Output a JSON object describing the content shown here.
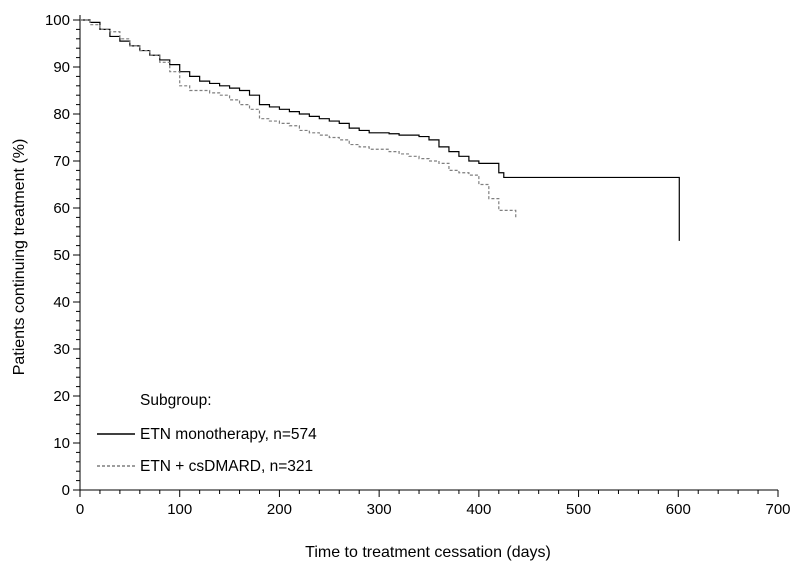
{
  "chart_data": {
    "type": "line",
    "title": "",
    "xlabel": "Time to treatment cessation (days)",
    "ylabel": "Patients continuing treatment (%)",
    "xlim": [
      0,
      700
    ],
    "ylim": [
      0,
      100
    ],
    "x_ticks": [
      0,
      100,
      200,
      300,
      400,
      500,
      600,
      700
    ],
    "y_ticks": [
      0,
      10,
      20,
      30,
      40,
      50,
      60,
      70,
      80,
      90,
      100
    ],
    "grid": false,
    "legend_title": "Subgroup:",
    "legend_position": "bottom-left",
    "series": [
      {
        "name": "ETN monotherapy, n=574",
        "style": "solid",
        "color": "#000000",
        "x": [
          0,
          10,
          20,
          30,
          40,
          50,
          60,
          70,
          80,
          90,
          100,
          110,
          120,
          130,
          140,
          150,
          160,
          170,
          180,
          190,
          200,
          210,
          220,
          230,
          240,
          250,
          260,
          270,
          280,
          290,
          300,
          310,
          320,
          330,
          340,
          350,
          360,
          370,
          380,
          390,
          400,
          410,
          420,
          425,
          430,
          600,
          601
        ],
        "y": [
          100,
          99.5,
          98,
          96.5,
          95.5,
          94.5,
          93.5,
          92.5,
          91.5,
          90.5,
          89,
          88,
          87,
          86.5,
          86,
          85.5,
          85,
          84,
          82,
          81.5,
          81,
          80.5,
          80,
          79.5,
          79,
          78.5,
          78,
          77,
          76.5,
          76,
          76,
          75.8,
          75.5,
          75.5,
          75.2,
          74.5,
          73,
          72,
          71,
          70,
          69.5,
          69.5,
          67.5,
          66.5,
          66.5,
          66.5,
          53
        ]
      },
      {
        "name": "ETN + csDMARD, n=321",
        "style": "dashed",
        "color": "#7f7f7f",
        "x": [
          0,
          10,
          20,
          30,
          40,
          50,
          60,
          70,
          80,
          90,
          100,
          110,
          120,
          130,
          140,
          150,
          160,
          170,
          180,
          190,
          200,
          210,
          220,
          230,
          240,
          250,
          260,
          270,
          280,
          290,
          300,
          310,
          320,
          330,
          340,
          350,
          360,
          370,
          380,
          390,
          400,
          410,
          420,
          430,
          437
        ],
        "y": [
          100,
          99,
          98,
          97.5,
          96,
          94.5,
          93.5,
          92.5,
          91,
          89,
          86,
          85,
          85,
          84.5,
          84,
          83,
          82,
          81,
          79,
          78.5,
          78,
          77.5,
          76.5,
          76,
          75.5,
          75,
          74.5,
          73.5,
          73,
          72.5,
          72.5,
          72,
          71.5,
          71,
          70.5,
          70,
          69.5,
          68,
          67.5,
          67,
          65,
          62,
          59.5,
          59.5,
          58
        ]
      }
    ]
  }
}
